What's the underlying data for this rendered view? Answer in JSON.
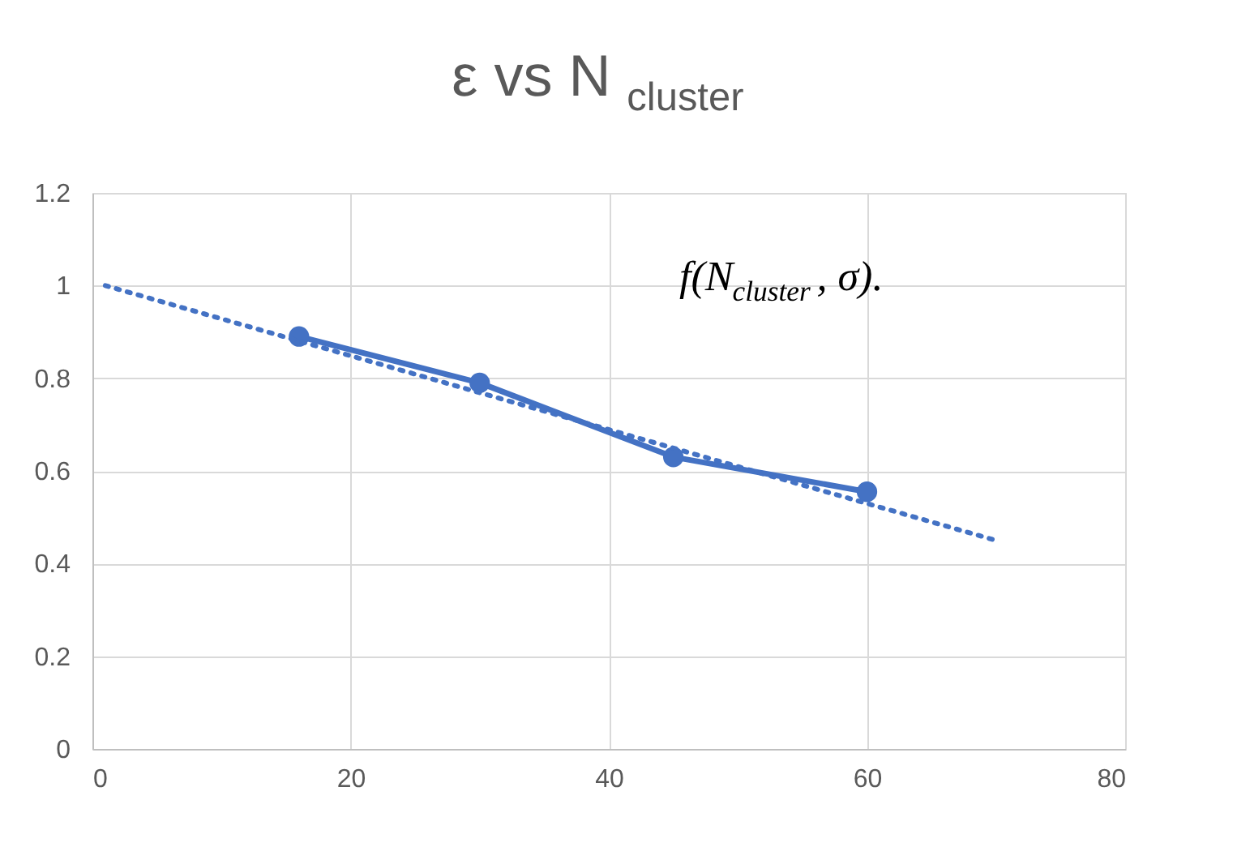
{
  "chart_data": {
    "type": "line",
    "title": "ε vs N$_{cluster}$",
    "annotations": [
      "f(N$_{cluster}$, σ)."
    ],
    "x": [
      16,
      30,
      45,
      60
    ],
    "series": [
      {
        "color": "#4472c4",
        "values": [
          0.89,
          0.79,
          0.63,
          0.555
        ],
        "marker": "circle",
        "line_style": "solid"
      },
      {
        "type": "line",
        "color": "#4472c4",
        "x": [
          1,
          70
        ],
        "values": [
          1.0,
          0.45
        ],
        "marker": "none",
        "line_style": "dotted"
      }
    ],
    "xlim": [
      0,
      80
    ],
    "xticks": [
      0,
      20,
      40,
      60,
      80
    ],
    "ylim": [
      0,
      1.2
    ],
    "yticks": [
      0,
      0.2,
      0.4,
      0.6,
      0.8,
      1,
      1.2
    ],
    "grid": true
  }
}
